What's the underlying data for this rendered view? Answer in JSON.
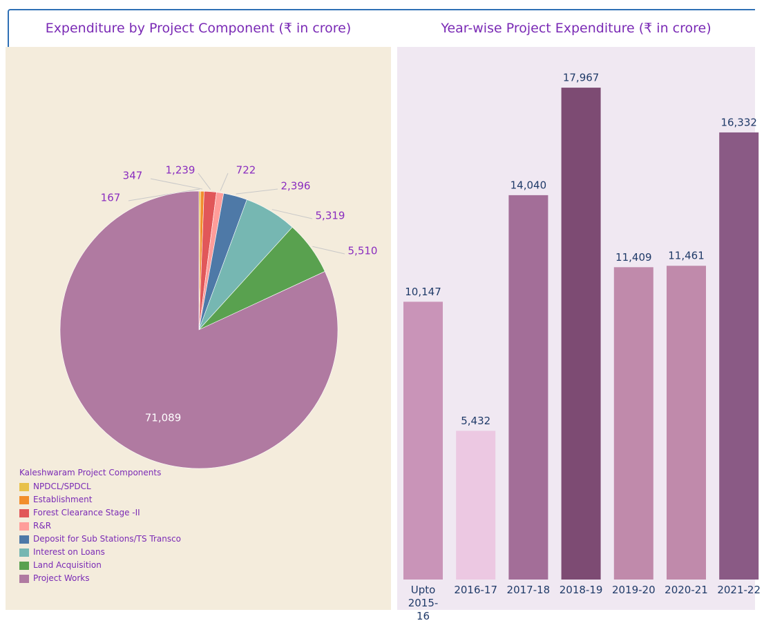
{
  "chart_data": [
    {
      "type": "pie",
      "title": "Expenditure by Project Component (₹ in crore)",
      "legend_title": "Kaleshwaram Project Components",
      "categories": [
        "NPDCL/SPDCL",
        "Establishment",
        "Forest Clearance Stage -II",
        "R&R",
        "Deposit for Sub Stations/TS Transco",
        "Interest on Loans",
        "Land Acquisition",
        "Project Works"
      ],
      "values": [
        167,
        347,
        1239,
        722,
        2396,
        5319,
        5510,
        71089
      ],
      "value_labels": [
        "167",
        "347",
        "1,239",
        "722",
        "2,396",
        "5,319",
        "5,510",
        "71,089"
      ],
      "colors": [
        "#e8c14a",
        "#f28e2b",
        "#e15759",
        "#ff9d9a",
        "#4e79a7",
        "#76b7b2",
        "#59a14f",
        "#b07aa1"
      ]
    },
    {
      "type": "bar",
      "title": "Year-wise Project Expenditure (₹ in crore)",
      "categories": [
        "Upto 2015-16",
        "2016-17",
        "2017-18",
        "2018-19",
        "2019-20",
        "2020-21",
        "2021-22"
      ],
      "values": [
        10147,
        5432,
        14040,
        17967,
        11409,
        11461,
        16332
      ],
      "value_labels": [
        "10,147",
        "5,432",
        "14,040",
        "17,967",
        "11,409",
        "11,461",
        "16,332"
      ],
      "colors": [
        "#c994b8",
        "#ecc8e2",
        "#a36e98",
        "#7d4b73",
        "#c08aab",
        "#c08aab",
        "#8a5a85"
      ]
    }
  ]
}
